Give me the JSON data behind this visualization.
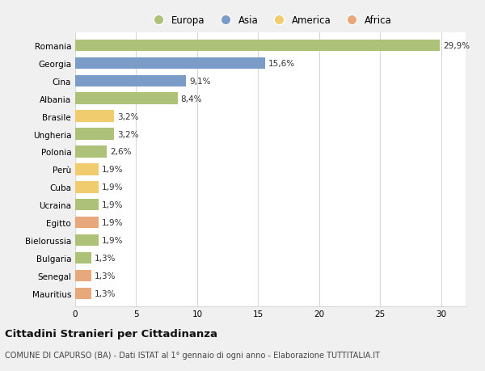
{
  "countries": [
    "Romania",
    "Georgia",
    "Cina",
    "Albania",
    "Brasile",
    "Ungheria",
    "Polonia",
    "Perù",
    "Cuba",
    "Ucraina",
    "Egitto",
    "Bielorussia",
    "Bulgaria",
    "Senegal",
    "Mauritius"
  ],
  "values": [
    29.9,
    15.6,
    9.1,
    8.4,
    3.2,
    3.2,
    2.6,
    1.9,
    1.9,
    1.9,
    1.9,
    1.9,
    1.3,
    1.3,
    1.3
  ],
  "labels": [
    "29,9%",
    "15,6%",
    "9,1%",
    "8,4%",
    "3,2%",
    "3,2%",
    "2,6%",
    "1,9%",
    "1,9%",
    "1,9%",
    "1,9%",
    "1,9%",
    "1,3%",
    "1,3%",
    "1,3%"
  ],
  "continents": [
    "Europa",
    "Asia",
    "Asia",
    "Europa",
    "America",
    "Europa",
    "Europa",
    "America",
    "America",
    "Europa",
    "Africa",
    "Europa",
    "Europa",
    "Africa",
    "Africa"
  ],
  "colors": {
    "Europa": "#adc178",
    "Asia": "#7b9cc9",
    "America": "#f0cc6e",
    "Africa": "#e8a87c"
  },
  "legend_order": [
    "Europa",
    "Asia",
    "America",
    "Africa"
  ],
  "xlim": [
    0,
    32
  ],
  "xticks": [
    0,
    5,
    10,
    15,
    20,
    25,
    30
  ],
  "title": "Cittadini Stranieri per Cittadinanza",
  "subtitle": "COMUNE DI CAPURSO (BA) - Dati ISTAT al 1° gennaio di ogni anno - Elaborazione TUTTITALIA.IT",
  "background_color": "#f0f0f0",
  "plot_bg_color": "#ffffff",
  "grid_color": "#d8d8d8",
  "bar_height": 0.65,
  "label_fontsize": 7.5,
  "tick_fontsize": 7.5,
  "title_fontsize": 9.5,
  "subtitle_fontsize": 7.0
}
